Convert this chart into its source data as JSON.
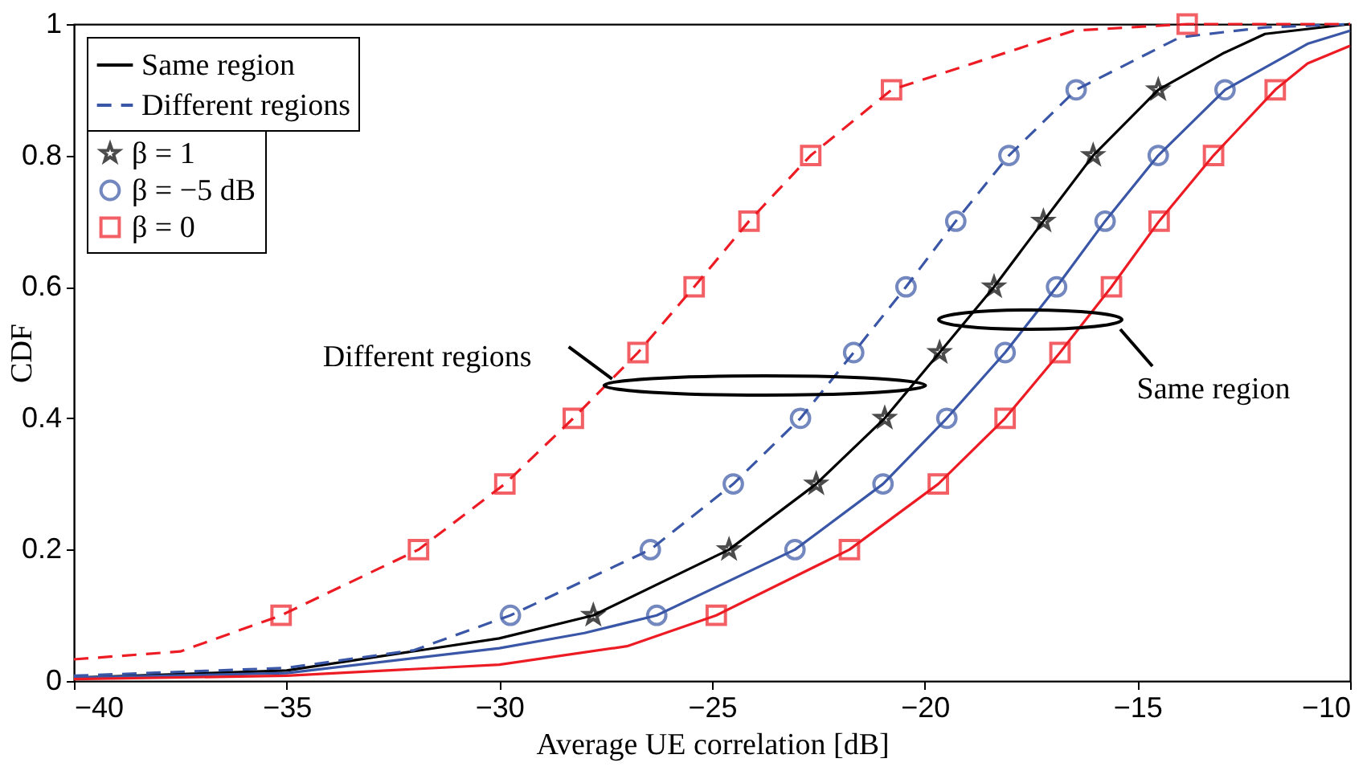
{
  "chart_data": {
    "type": "line",
    "xlabel": "Average UE correlation [dB]",
    "ylabel": "CDF",
    "xlim": [
      -40,
      -10
    ],
    "ylim": [
      0,
      1
    ],
    "xticks": [
      -40,
      -35,
      -30,
      -25,
      -20,
      -15,
      -10
    ],
    "yticks": [
      0,
      0.2,
      0.4,
      0.6,
      0.8,
      1
    ],
    "legend": "top left",
    "annotations": [
      {
        "text": "Different regions",
        "x": -27.5,
        "y": 0.45
      },
      "Same region"
    ],
    "series": [
      {
        "name": "Same region",
        "color": "#000000",
        "line_style": "solid",
        "x": [
          -40,
          -35,
          -30,
          -27.79,
          -24.6,
          -22.55,
          -20.94,
          -19.65,
          -18.37,
          -17.21,
          -16.04,
          -14.51,
          -13,
          -12,
          -10
        ],
        "values": [
          0.005,
          0.016,
          0.065,
          0.1,
          0.2,
          0.3,
          0.4,
          0.5,
          0.6,
          0.7,
          0.8,
          0.9,
          0.955,
          0.985,
          1
        ]
      },
      {
        "color": "#3a56a6",
        "line_style": "solid",
        "x": [
          -40,
          -35,
          -30,
          -28,
          -26.3,
          -23.05,
          -20.98,
          -19.48,
          -18.11,
          -16.9,
          -15.76,
          -14.51,
          -12.94,
          -11,
          -10
        ],
        "values": [
          0.005,
          0.012,
          0.05,
          0.073,
          0.1,
          0.2,
          0.3,
          0.4,
          0.5,
          0.6,
          0.7,
          0.8,
          0.9,
          0.97,
          0.99
        ]
      },
      {
        "color": "#ed1c24",
        "line_style": "solid",
        "x": [
          -40,
          -35,
          -30,
          -27,
          -24.9,
          -21.77,
          -19.68,
          -18.11,
          -16.82,
          -15.61,
          -14.49,
          -13.21,
          -11.76,
          -11,
          -10
        ],
        "values": [
          0.003,
          0.008,
          0.025,
          0.053,
          0.1,
          0.2,
          0.3,
          0.4,
          0.5,
          0.6,
          0.7,
          0.8,
          0.9,
          0.94,
          0.967
        ]
      },
      {
        "name": "Different regions",
        "color": "#3a56a6",
        "line_style": "dashed",
        "x": [
          -40,
          -35,
          -32,
          -29.74,
          -26.45,
          -24.5,
          -22.92,
          -21.67,
          -20.44,
          -19.27,
          -18.02,
          -16.44,
          -14,
          -12,
          -10
        ],
        "values": [
          0.008,
          0.02,
          0.047,
          0.1,
          0.2,
          0.3,
          0.4,
          0.5,
          0.6,
          0.7,
          0.8,
          0.9,
          0.98,
          0.995,
          1
        ]
      },
      {
        "color": "#ed1c24",
        "line_style": "dashed",
        "x": [
          -40,
          -37.5,
          -35.13,
          -31.9,
          -29.87,
          -28.26,
          -26.74,
          -25.42,
          -24.13,
          -22.68,
          -20.78,
          -16.5,
          -13.83,
          -10
        ],
        "values": [
          0.033,
          0.045,
          0.1,
          0.2,
          0.3,
          0.4,
          0.5,
          0.6,
          0.7,
          0.8,
          0.9,
          0.99,
          1,
          1
        ]
      },
      {
        "name": "β = 1",
        "type": "scatter",
        "marker": "star",
        "color": "#000000",
        "x": [
          -27.79,
          -24.6,
          -22.55,
          -20.94,
          -19.65,
          -18.37,
          -17.21,
          -16.04,
          -14.51
        ],
        "values": [
          0.1,
          0.2,
          0.3,
          0.4,
          0.5,
          0.6,
          0.7,
          0.8,
          0.9
        ]
      },
      {
        "name": "β = −5 dB",
        "type": "scatter",
        "marker": "circle",
        "color": "#3a56a6",
        "x": [
          -26.3,
          -23.05,
          -20.98,
          -19.48,
          -18.11,
          -16.9,
          -15.76,
          -14.51,
          -12.94
        ],
        "values": [
          0.1,
          0.2,
          0.3,
          0.4,
          0.5,
          0.6,
          0.7,
          0.8,
          0.9
        ]
      },
      {
        "type": "scatter",
        "marker": "circle",
        "color": "#3a56a6",
        "x": [
          -29.74,
          -26.45,
          -24.5,
          -22.92,
          -21.67,
          -20.44,
          -19.27,
          -18.02,
          -16.44
        ],
        "values": [
          0.1,
          0.2,
          0.3,
          0.4,
          0.5,
          0.6,
          0.7,
          0.8,
          0.9
        ]
      },
      {
        "name": "β = 0",
        "type": "scatter",
        "marker": "square",
        "color": "#ed1c24",
        "x": [
          -24.9,
          -21.77,
          -19.68,
          -18.11,
          -16.82,
          -15.61,
          -14.49,
          -13.21,
          -11.76
        ],
        "values": [
          0.1,
          0.2,
          0.3,
          0.4,
          0.5,
          0.6,
          0.7,
          0.8,
          0.9
        ]
      },
      {
        "type": "scatter",
        "marker": "square",
        "color": "#ed1c24",
        "x": [
          -35.13,
          -31.9,
          -29.87,
          -28.26,
          -26.74,
          -25.42,
          -24.13,
          -22.68,
          -20.78,
          -13.83
        ],
        "values": [
          0.1,
          0.2,
          0.3,
          0.4,
          0.5,
          0.6,
          0.7,
          0.8,
          0.9,
          1
        ]
      }
    ]
  }
}
